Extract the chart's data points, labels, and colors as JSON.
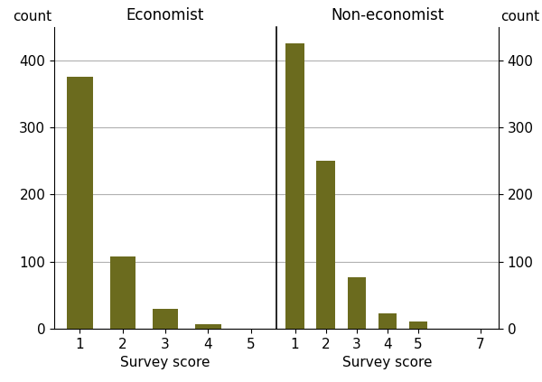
{
  "economist_scores": [
    1,
    2,
    3,
    4,
    5
  ],
  "economist_counts": [
    375,
    108,
    30,
    7,
    0
  ],
  "noneconomist_scores": [
    1,
    2,
    3,
    4,
    5,
    7
  ],
  "noneconomist_counts": [
    425,
    250,
    77,
    22,
    10,
    0
  ],
  "bar_color": "#6b6b1e",
  "ylim": [
    0,
    450
  ],
  "yticks": [
    0,
    100,
    200,
    300,
    400
  ],
  "economist_xticks": [
    1,
    2,
    3,
    4,
    5
  ],
  "noneconomist_xticks": [
    1,
    2,
    3,
    4,
    5,
    7
  ],
  "economist_xlim": [
    0.4,
    5.6
  ],
  "noneconomist_xlim": [
    0.4,
    7.6
  ],
  "xlabel": "Survey score",
  "ylabel_left": "count",
  "ylabel_right": "count",
  "title_left": "Economist",
  "title_right": "Non-economist",
  "title_fontsize": 12,
  "axis_label_fontsize": 11,
  "tick_fontsize": 11,
  "background_color": "#ffffff",
  "grid_color": "#b0b0b0",
  "grid_linewidth": 0.8,
  "bar_width": 0.6
}
